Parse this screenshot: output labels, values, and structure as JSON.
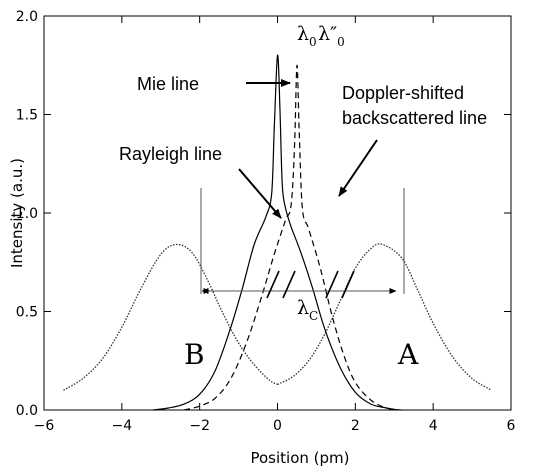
{
  "chart_data": {
    "type": "line",
    "xlabel": "Position (pm)",
    "ylabel": "Intensity (a.u.)",
    "xlim": [
      -6,
      6
    ],
    "ylim": [
      0,
      2
    ],
    "xticks": [
      -6,
      -4,
      -2,
      0,
      2,
      4,
      6
    ],
    "yticks": [
      0.0,
      0.5,
      1.0,
      1.5,
      2.0
    ],
    "xtick_labels": [
      "−6",
      "−4",
      "−2",
      "0",
      "2",
      "4",
      "6"
    ],
    "ytick_labels": [
      "0.0",
      "0.5",
      "1.0",
      "1.5",
      "2.0"
    ],
    "grid": false,
    "legend": "none",
    "series": [
      {
        "style": "dotted",
        "x": [
          -5.5,
          -5.0,
          -4.5,
          -4.0,
          -3.5,
          -3.0,
          -2.6,
          -2.2,
          -1.8,
          -1.4,
          -1.0,
          -0.6,
          -0.2,
          0.0
        ],
        "y": [
          0.1,
          0.16,
          0.26,
          0.42,
          0.62,
          0.79,
          0.84,
          0.8,
          0.66,
          0.49,
          0.34,
          0.23,
          0.15,
          0.13
        ]
      },
      {
        "style": "dotted",
        "x": [
          0.0,
          0.4,
          0.8,
          1.2,
          1.6,
          2.0,
          2.4,
          2.7,
          3.2,
          3.6,
          4.0,
          4.5,
          5.0,
          5.5
        ],
        "y": [
          0.13,
          0.17,
          0.25,
          0.38,
          0.55,
          0.72,
          0.82,
          0.84,
          0.77,
          0.61,
          0.44,
          0.27,
          0.16,
          0.1
        ]
      },
      {
        "style": "solid",
        "x": [
          -3.2,
          -2.8,
          -2.4,
          -2.0,
          -1.6,
          -1.2,
          -0.9,
          -0.6,
          -0.3,
          -0.15,
          -0.08,
          0.0,
          0.06,
          0.12,
          0.2,
          0.35,
          0.6,
          0.9,
          1.2,
          1.6,
          2.0,
          2.4,
          2.8,
          3.1
        ],
        "y": [
          0.0,
          0.01,
          0.03,
          0.08,
          0.2,
          0.42,
          0.62,
          0.84,
          0.98,
          1.1,
          1.45,
          1.8,
          1.55,
          1.15,
          1.03,
          0.93,
          0.8,
          0.62,
          0.42,
          0.22,
          0.09,
          0.03,
          0.01,
          0.0
        ]
      },
      {
        "style": "dashed",
        "x": [
          -2.4,
          -2.0,
          -1.6,
          -1.2,
          -0.8,
          -0.4,
          -0.1,
          0.2,
          0.35,
          0.44,
          0.5,
          0.56,
          0.64,
          0.8,
          1.1,
          1.4,
          1.7,
          2.0,
          2.4,
          2.8,
          3.2
        ],
        "y": [
          0.0,
          0.02,
          0.06,
          0.16,
          0.34,
          0.58,
          0.78,
          0.96,
          1.04,
          1.35,
          1.75,
          1.4,
          1.02,
          0.92,
          0.72,
          0.48,
          0.28,
          0.14,
          0.05,
          0.01,
          0.0
        ]
      }
    ],
    "annotations": {
      "mie": "Mie line",
      "doppler_line1": "Doppler-shifted",
      "doppler_line2": "backscattered line",
      "rayleigh": "Rayleigh line",
      "label_b": "B",
      "label_a": "A",
      "lambda0_base": "λ",
      "lambda0_sub": "0",
      "lambda_pp_base": "λ″",
      "lambda_pp_sub": "0",
      "lambdac_base": "λ",
      "lambdac_sub": "C"
    }
  }
}
